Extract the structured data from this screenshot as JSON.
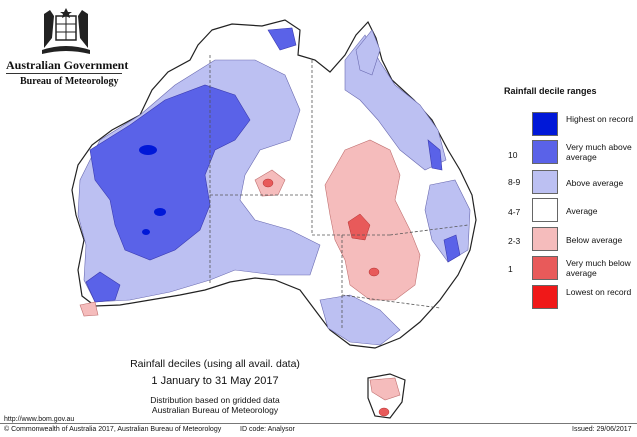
{
  "header": {
    "government": "Australian Government",
    "bureau": "Bureau of Meteorology"
  },
  "legend": {
    "title": "Rainfall decile ranges",
    "items": [
      {
        "range": "",
        "label": "Highest on record",
        "color": "#0018d8"
      },
      {
        "range": "10",
        "label": "Very much above average",
        "color": "#5a62e8"
      },
      {
        "range": "8-9",
        "label": "Above average",
        "color": "#bcc0f2"
      },
      {
        "range": "4-7",
        "label": "Average",
        "color": "#ffffff"
      },
      {
        "range": "2-3",
        "label": "Below average",
        "color": "#f5bcbc"
      },
      {
        "range": "1",
        "label": "Very much below average",
        "color": "#e85a5a"
      },
      {
        "range": "",
        "label": "Lowest on record",
        "color": "#f01818"
      }
    ]
  },
  "caption": {
    "title": "Rainfall deciles (using all avail. data)",
    "period": "1 January to 31 May 2017",
    "line3": "Distribution based on gridded data",
    "line4": "Australian Bureau of Meteorology"
  },
  "footer": {
    "website": "http://www.bom.gov.au",
    "copyright": "© Commonwealth of Australia 2017, Australian Bureau of Meteorology",
    "id_code": "ID code: Analysor",
    "issued": "Issued: 29/06/2017"
  }
}
